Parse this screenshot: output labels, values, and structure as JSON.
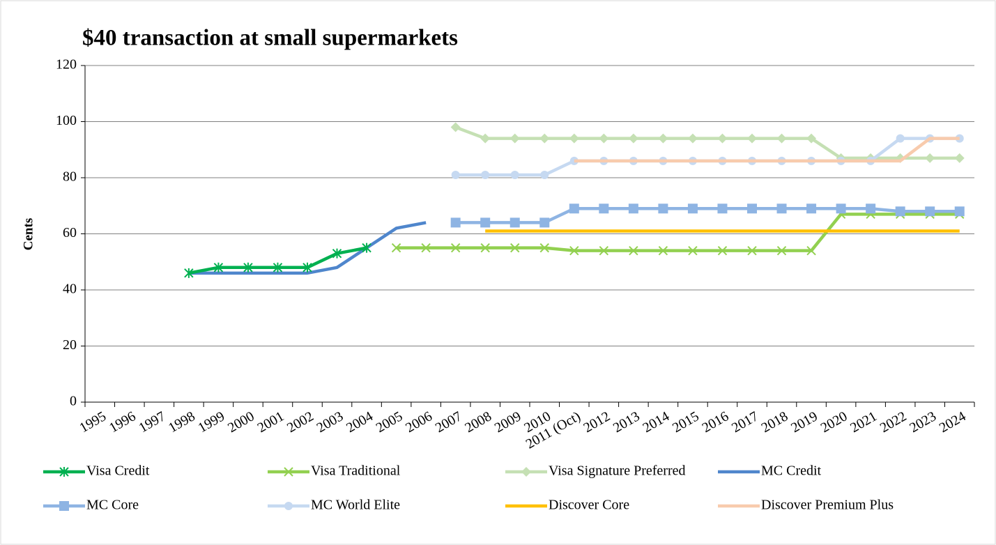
{
  "chart_data": {
    "type": "line",
    "title": "$40 transaction at small supermarkets",
    "y_label": "Cents",
    "categories": [
      "1995",
      "1996",
      "1997",
      "1998",
      "1999",
      "2000",
      "2001",
      "2002",
      "2003",
      "2004",
      "2005",
      "2006",
      "2007",
      "2008",
      "2009",
      "2010",
      "2011 (Oct)",
      "2012",
      "2013",
      "2014",
      "2015",
      "2016",
      "2017",
      "2018",
      "2019",
      "2020",
      "2021",
      "2022",
      "2023",
      "2024"
    ],
    "ylim": [
      0,
      120
    ],
    "yticks": [
      0,
      20,
      40,
      60,
      80,
      100,
      120
    ],
    "grid": true,
    "series": [
      {
        "name": "Visa Credit",
        "color": "#00b050",
        "marker": "asterisk",
        "values": [
          null,
          null,
          null,
          46,
          48,
          48,
          48,
          48,
          53,
          55,
          null,
          null,
          null,
          null,
          null,
          null,
          null,
          null,
          null,
          null,
          null,
          null,
          null,
          null,
          null,
          null,
          null,
          null,
          null,
          null
        ]
      },
      {
        "name": "Visa Traditional",
        "color": "#92d050",
        "marker": "x",
        "values": [
          null,
          null,
          null,
          null,
          null,
          null,
          null,
          null,
          null,
          null,
          55,
          55,
          55,
          55,
          55,
          55,
          54,
          54,
          54,
          54,
          54,
          54,
          54,
          54,
          54,
          67,
          67,
          67,
          67,
          67
        ]
      },
      {
        "name": "Visa Signature Preferred",
        "color": "#c5e0b4",
        "marker": "diamond",
        "values": [
          null,
          null,
          null,
          null,
          null,
          null,
          null,
          null,
          null,
          null,
          null,
          null,
          98,
          94,
          94,
          94,
          94,
          94,
          94,
          94,
          94,
          94,
          94,
          94,
          94,
          87,
          87,
          87,
          87,
          87
        ]
      },
      {
        "name": "MC Credit",
        "color": "#4f86cc",
        "marker": "none",
        "values": [
          null,
          null,
          null,
          46,
          46,
          46,
          46,
          46,
          48,
          55,
          62,
          64,
          null,
          null,
          null,
          null,
          null,
          null,
          null,
          null,
          null,
          null,
          null,
          null,
          null,
          null,
          null,
          null,
          null,
          null
        ]
      },
      {
        "name": "MC Core",
        "color": "#8eb4e3",
        "marker": "square",
        "values": [
          null,
          null,
          null,
          null,
          null,
          null,
          null,
          null,
          null,
          null,
          null,
          null,
          64,
          64,
          64,
          64,
          69,
          69,
          69,
          69,
          69,
          69,
          69,
          69,
          69,
          69,
          69,
          68,
          68,
          68
        ]
      },
      {
        "name": "MC World Elite",
        "color": "#c6d9f1",
        "marker": "circle",
        "values": [
          null,
          null,
          null,
          null,
          null,
          null,
          null,
          null,
          null,
          null,
          null,
          null,
          81,
          81,
          81,
          81,
          86,
          86,
          86,
          86,
          86,
          86,
          86,
          86,
          86,
          86,
          86,
          94,
          94,
          94
        ]
      },
      {
        "name": "Discover Core",
        "color": "#ffc000",
        "marker": "none",
        "values": [
          null,
          null,
          null,
          null,
          null,
          null,
          null,
          null,
          null,
          null,
          null,
          null,
          null,
          61,
          61,
          61,
          61,
          61,
          61,
          61,
          61,
          61,
          61,
          61,
          61,
          61,
          61,
          61,
          61,
          61
        ]
      },
      {
        "name": "Discover Premium Plus",
        "color": "#f8cbad",
        "marker": "none",
        "values": [
          null,
          null,
          null,
          null,
          null,
          null,
          null,
          null,
          null,
          null,
          null,
          null,
          null,
          null,
          null,
          null,
          86,
          86,
          86,
          86,
          86,
          86,
          86,
          86,
          86,
          86,
          86,
          86,
          94,
          94
        ]
      }
    ]
  }
}
